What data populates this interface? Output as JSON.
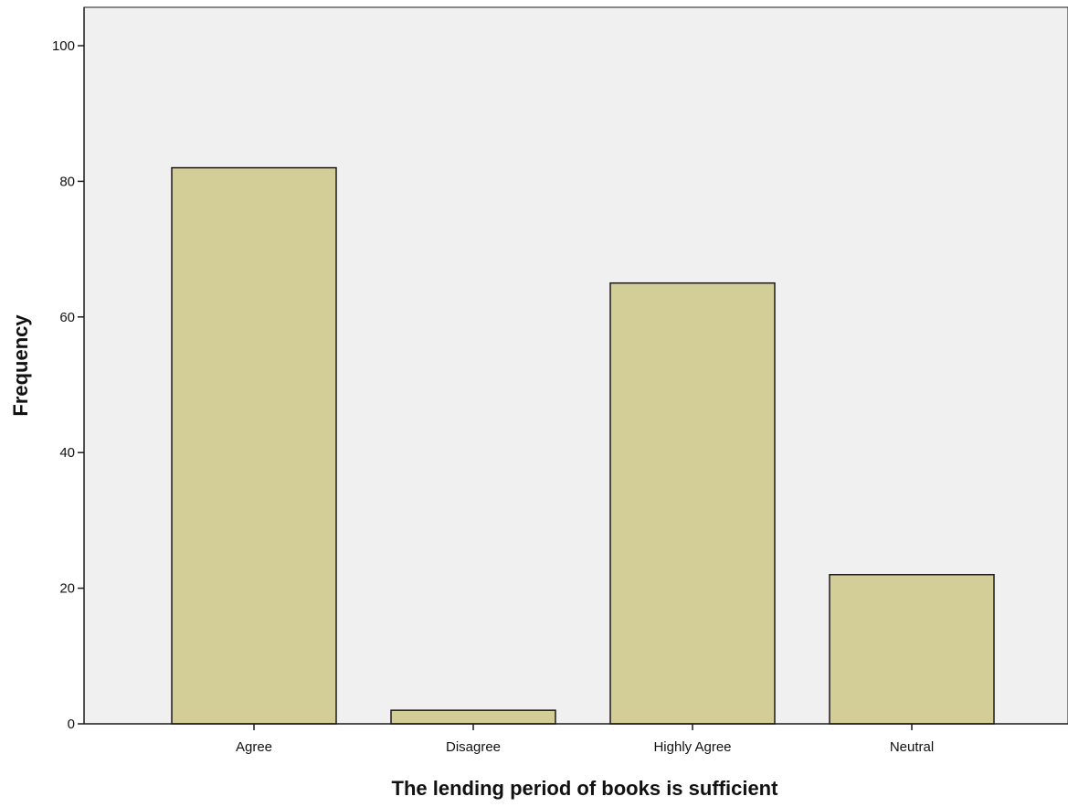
{
  "chart_data": {
    "type": "bar",
    "title": "",
    "xlabel": "The lending period of books is sufficient",
    "ylabel": "Frequency",
    "categories": [
      "Agree",
      "Disagree",
      "Highly Agree",
      "Neutral"
    ],
    "values": [
      82,
      2,
      65,
      22
    ],
    "yticks": [
      "0",
      "20",
      "40",
      "60",
      "80",
      "100"
    ],
    "ylim": [
      0,
      105
    ],
    "grid": false,
    "legend": "none",
    "colors": {
      "bar_fill": "#d3cd97",
      "bar_stroke": "#1a1a1a",
      "plot_background": "#f0f0f0",
      "axis": "#1a1a1a"
    }
  }
}
